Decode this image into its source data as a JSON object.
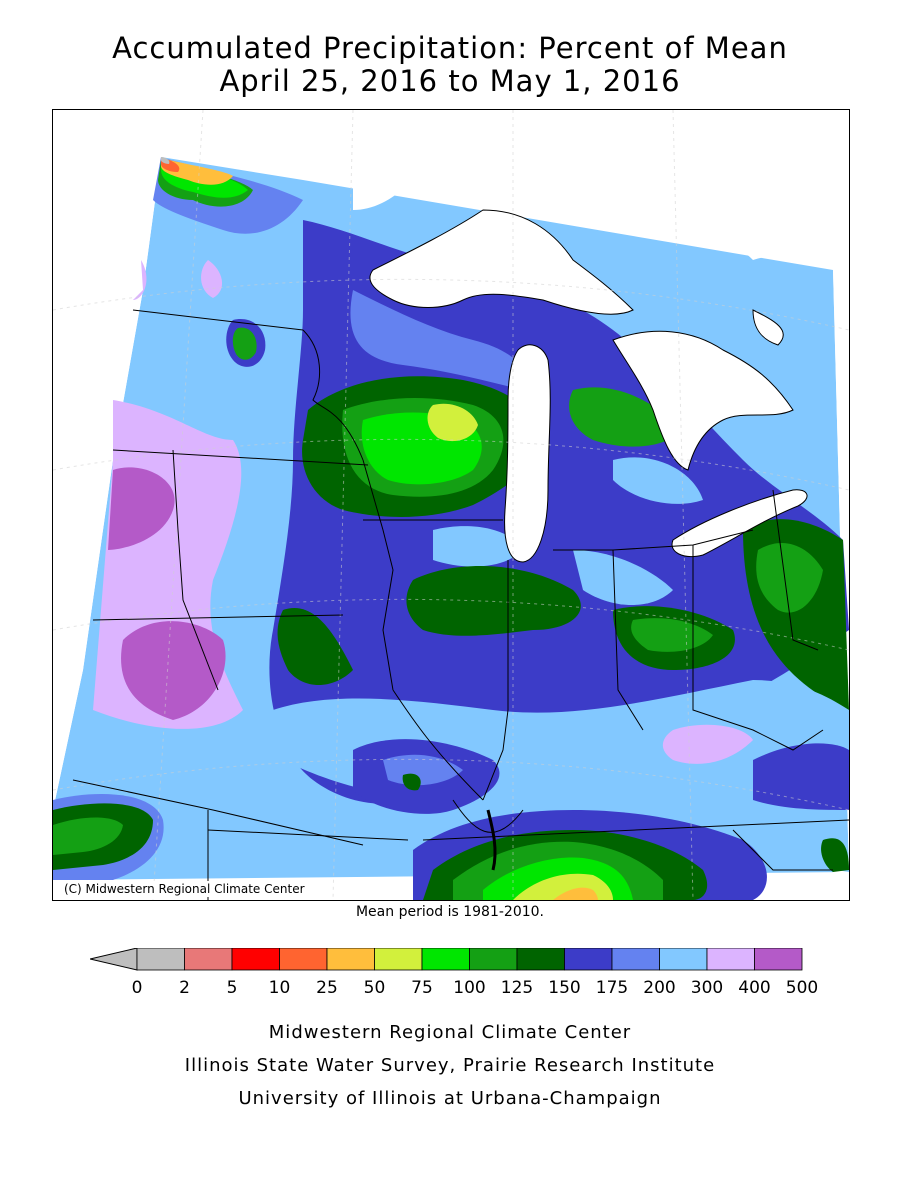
{
  "title": {
    "line1": "Accumulated Precipitation: Percent of Mean",
    "line2": "April 25, 2016 to May 1, 2016"
  },
  "map": {
    "copyright": "(C) Midwestern Regional Climate Center",
    "mean_note": "Mean period is 1981-2010."
  },
  "legend": {
    "labels": [
      "0",
      "2",
      "5",
      "10",
      "25",
      "50",
      "75",
      "100",
      "125",
      "150",
      "175",
      "200",
      "300",
      "400",
      "500"
    ],
    "colors": [
      "#bebebe",
      "#e87878",
      "#ff0000",
      "#ff6430",
      "#ffbe3c",
      "#d2f03c",
      "#00e600",
      "#14a014",
      "#006400",
      "#3c3cc8",
      "#6482f0",
      "#82c8ff",
      "#dcb4ff",
      "#b45ac8"
    ]
  },
  "footer": {
    "line1": "Midwestern Regional Climate Center",
    "line2": "Illinois State Water Survey, Prairie Research Institute",
    "line3": "University of Illinois at Urbana-Champaign"
  }
}
